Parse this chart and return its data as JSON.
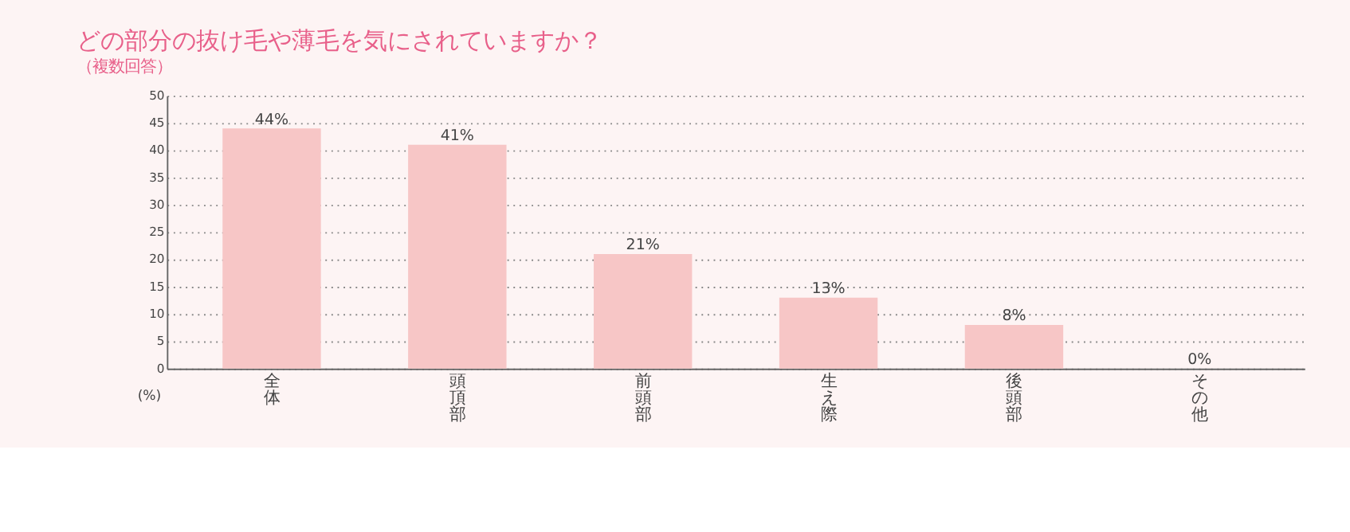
{
  "chart_data": {
    "type": "bar",
    "title": "どの部分の抜け毛や薄毛を気にされていますか？",
    "subtitle": "（複数回答）",
    "ylabel": "(%)",
    "categories": [
      "全体",
      "頭頂部",
      "前頭部",
      "生え際",
      "後頭部",
      "その他"
    ],
    "values": [
      44,
      41,
      21,
      13,
      8,
      0
    ],
    "value_labels": [
      "44%",
      "41%",
      "21%",
      "13%",
      "8%",
      "0%"
    ],
    "color": "#f7c6c6",
    "ylim": [
      0,
      50
    ],
    "yticks": [
      0,
      5,
      10,
      15,
      20,
      25,
      30,
      35,
      40,
      45,
      50
    ],
    "grid": "y"
  }
}
